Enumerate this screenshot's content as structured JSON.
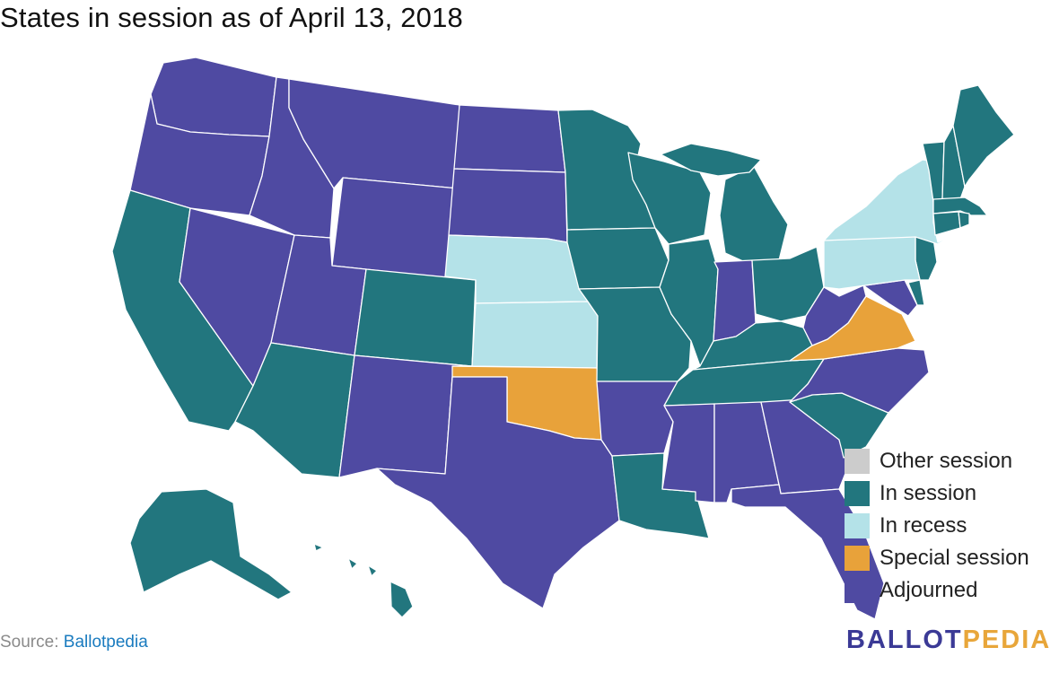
{
  "title": "States in session as of April 13, 2018",
  "source": {
    "label": "Source:",
    "link_text": "Ballotpedia"
  },
  "logo": {
    "part1": "BALLOT",
    "part2": "PEDIA"
  },
  "colors": {
    "other": "#cccccc",
    "in_session": "#22767e",
    "in_recess": "#b4e2e8",
    "special": "#e8a23a",
    "adjourned": "#4f4aa2"
  },
  "legend": [
    {
      "label": "Other session",
      "status": "other"
    },
    {
      "label": "In session",
      "status": "in_session"
    },
    {
      "label": "In recess",
      "status": "in_recess"
    },
    {
      "label": "Special session",
      "status": "special"
    },
    {
      "label": "Adjourned",
      "status": "adjourned"
    }
  ],
  "states": [
    {
      "abbr": "WA",
      "status": "adjourned"
    },
    {
      "abbr": "OR",
      "status": "adjourned"
    },
    {
      "abbr": "CA",
      "status": "in_session"
    },
    {
      "abbr": "NV",
      "status": "adjourned"
    },
    {
      "abbr": "ID",
      "status": "adjourned"
    },
    {
      "abbr": "MT",
      "status": "adjourned"
    },
    {
      "abbr": "WY",
      "status": "adjourned"
    },
    {
      "abbr": "UT",
      "status": "adjourned"
    },
    {
      "abbr": "AZ",
      "status": "in_session"
    },
    {
      "abbr": "CO",
      "status": "in_session"
    },
    {
      "abbr": "NM",
      "status": "adjourned"
    },
    {
      "abbr": "ND",
      "status": "adjourned"
    },
    {
      "abbr": "SD",
      "status": "adjourned"
    },
    {
      "abbr": "NE",
      "status": "in_recess"
    },
    {
      "abbr": "KS",
      "status": "in_recess"
    },
    {
      "abbr": "OK",
      "status": "special"
    },
    {
      "abbr": "TX",
      "status": "adjourned"
    },
    {
      "abbr": "MN",
      "status": "in_session"
    },
    {
      "abbr": "IA",
      "status": "in_session"
    },
    {
      "abbr": "MO",
      "status": "in_session"
    },
    {
      "abbr": "AR",
      "status": "adjourned"
    },
    {
      "abbr": "LA",
      "status": "in_session"
    },
    {
      "abbr": "WI",
      "status": "in_session"
    },
    {
      "abbr": "IL",
      "status": "in_session"
    },
    {
      "abbr": "MI",
      "status": "in_session"
    },
    {
      "abbr": "IN",
      "status": "adjourned"
    },
    {
      "abbr": "OH",
      "status": "in_session"
    },
    {
      "abbr": "KY",
      "status": "in_session"
    },
    {
      "abbr": "TN",
      "status": "in_session"
    },
    {
      "abbr": "MS",
      "status": "adjourned"
    },
    {
      "abbr": "AL",
      "status": "adjourned"
    },
    {
      "abbr": "GA",
      "status": "adjourned"
    },
    {
      "abbr": "FL",
      "status": "adjourned"
    },
    {
      "abbr": "SC",
      "status": "in_session"
    },
    {
      "abbr": "NC",
      "status": "adjourned"
    },
    {
      "abbr": "VA",
      "status": "special"
    },
    {
      "abbr": "WV",
      "status": "adjourned"
    },
    {
      "abbr": "MD",
      "status": "adjourned"
    },
    {
      "abbr": "DE",
      "status": "in_session"
    },
    {
      "abbr": "NJ",
      "status": "in_session"
    },
    {
      "abbr": "PA",
      "status": "in_recess"
    },
    {
      "abbr": "NY",
      "status": "in_recess"
    },
    {
      "abbr": "VT",
      "status": "in_session"
    },
    {
      "abbr": "NH",
      "status": "in_session"
    },
    {
      "abbr": "ME",
      "status": "in_session"
    },
    {
      "abbr": "MA",
      "status": "in_session"
    },
    {
      "abbr": "CT",
      "status": "in_session"
    },
    {
      "abbr": "RI",
      "status": "in_session"
    },
    {
      "abbr": "AK",
      "status": "in_session"
    },
    {
      "abbr": "HI",
      "status": "in_session"
    }
  ]
}
